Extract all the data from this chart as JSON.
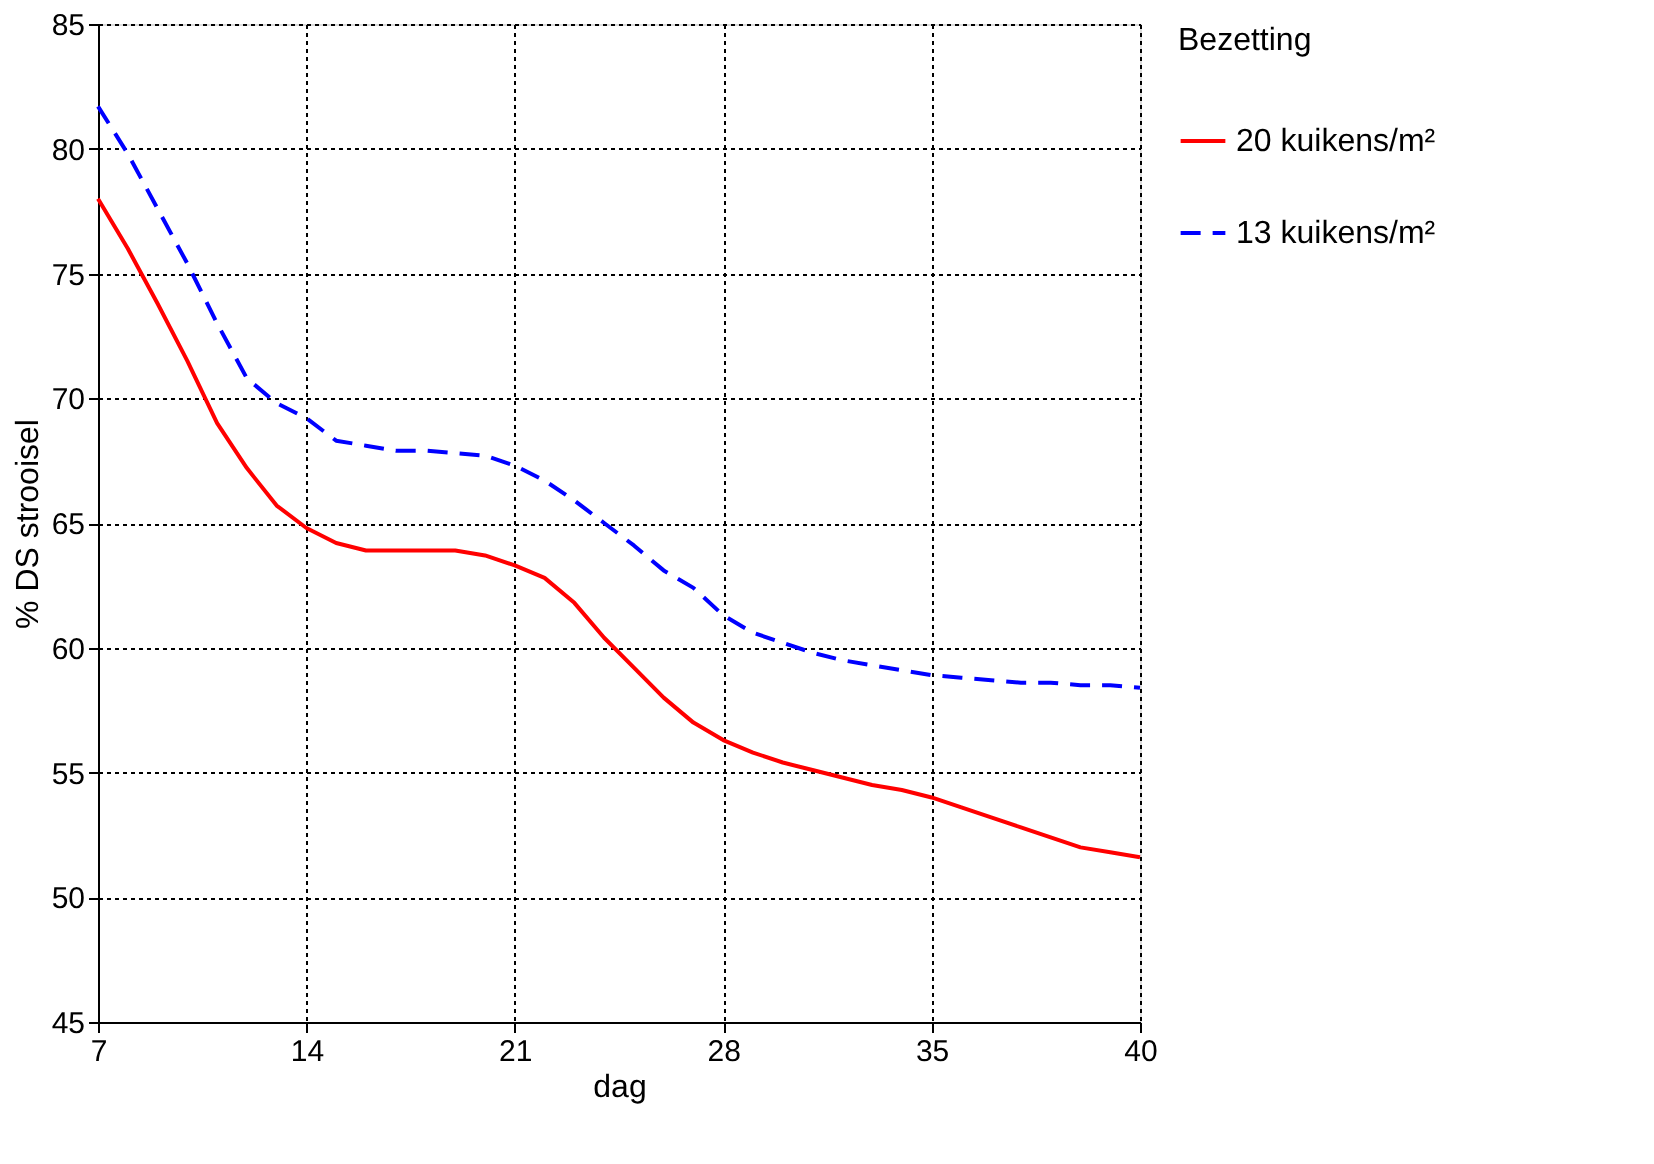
{
  "chart_data": {
    "type": "line",
    "xlabel": "dag",
    "ylabel": "% DS strooisel",
    "legend_title": "Bezetting",
    "legend": "right",
    "grid": true,
    "categories": [
      "7",
      null,
      null,
      null,
      null,
      null,
      null,
      "14",
      null,
      null,
      null,
      null,
      null,
      null,
      "21",
      null,
      null,
      null,
      null,
      null,
      null,
      "28",
      null,
      null,
      null,
      null,
      null,
      null,
      "35",
      null,
      null,
      null,
      null,
      null,
      null,
      "40"
    ],
    "ylim": [
      45,
      85
    ],
    "yticks": [
      45,
      50,
      55,
      60,
      65,
      70,
      75,
      80,
      85
    ],
    "marker": "none",
    "series": [
      {
        "name": "20 kuikens/m²",
        "color": "#ff0000",
        "line_style": "solid",
        "values": [
          78.0,
          76.0,
          73.8,
          71.5,
          69.0,
          67.2,
          65.7,
          64.8,
          64.2,
          63.9,
          63.9,
          63.9,
          63.9,
          63.7,
          63.3,
          62.8,
          61.8,
          60.4,
          59.2,
          58.0,
          57.0,
          56.3,
          55.8,
          55.4,
          55.1,
          54.8,
          54.5,
          54.3,
          54.0,
          53.6,
          53.2,
          52.8,
          52.4,
          52.0,
          51.8,
          51.6
        ]
      },
      {
        "name": "13 kuikens/m²",
        "color": "#0000ff",
        "line_style": "dashed",
        "values": [
          81.7,
          79.8,
          77.6,
          75.4,
          73.0,
          70.8,
          69.8,
          69.2,
          68.3,
          68.1,
          67.9,
          67.9,
          67.8,
          67.7,
          67.3,
          66.7,
          65.9,
          65.0,
          64.1,
          63.1,
          62.4,
          61.3,
          60.6,
          60.2,
          59.8,
          59.5,
          59.3,
          59.1,
          58.9,
          58.8,
          58.7,
          58.6,
          58.6,
          58.5,
          58.5,
          58.4
        ]
      }
    ]
  }
}
